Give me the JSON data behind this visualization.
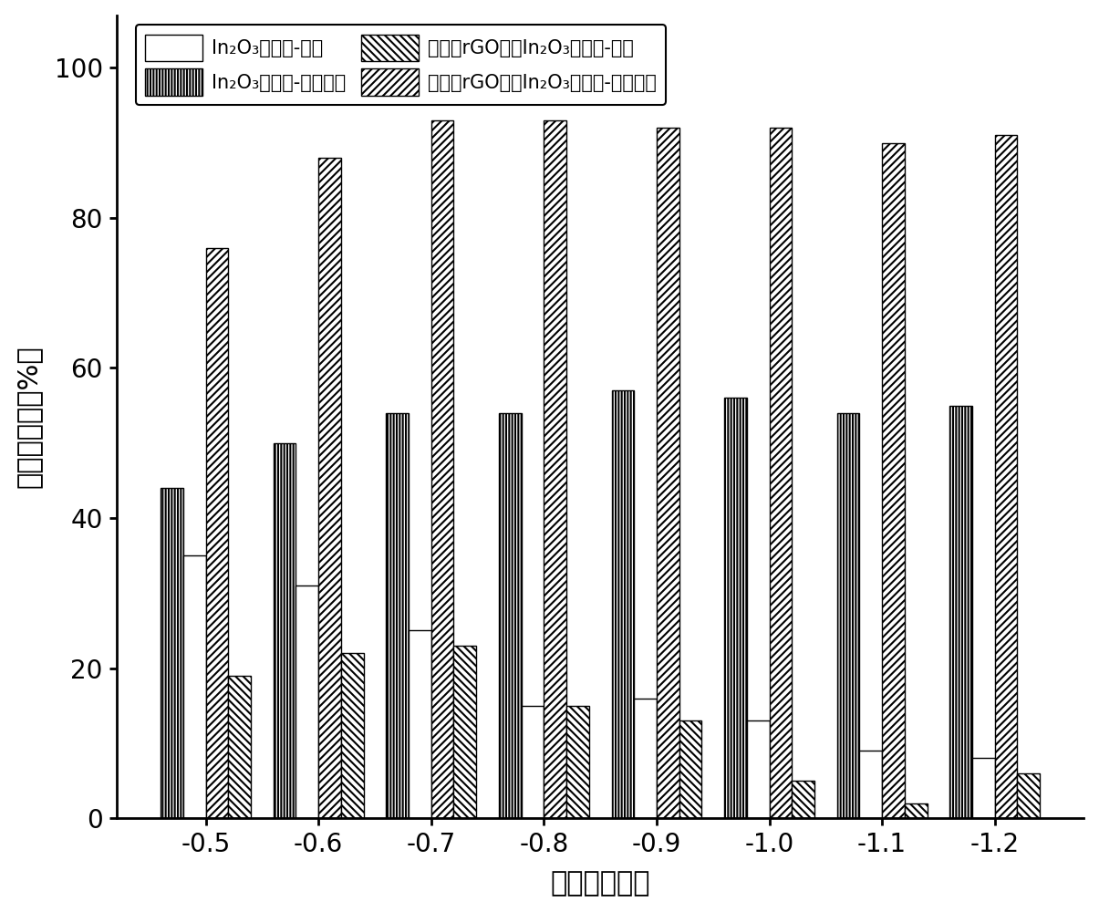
{
  "voltages": [
    "-0.5",
    "-0.6",
    "-0.7",
    "-0.8",
    "-0.9",
    "-1.0",
    "-1.1",
    "-1.2"
  ],
  "series": {
    "In2O3_formic": [
      35,
      31,
      25,
      15,
      16,
      13,
      9,
      8
    ],
    "In2O3_CO": [
      44,
      50,
      54,
      54,
      57,
      56,
      54,
      55
    ],
    "rGO_formic": [
      19,
      22,
      23,
      15,
      13,
      5,
      2,
      6
    ],
    "rGO_CO": [
      76,
      88,
      93,
      93,
      92,
      92,
      90,
      91
    ]
  },
  "labels": {
    "In2O3_formic": "In₂O₃纳米带-甲酸",
    "In2O3_CO": "In₂O₃纳米带-一氧化碳",
    "rGO_formic": "生长在rGO上的In₂O₃纳米带-甲酸",
    "rGO_CO": "生长在rGO上的In₂O₃纳米带-一氧化碳"
  },
  "xlabel": "电势（伏特）",
  "ylabel": "法拉第效率（%）",
  "ylim": [
    0,
    107
  ],
  "yticks": [
    0,
    20,
    40,
    60,
    80,
    100
  ],
  "bar_width": 0.2,
  "background_color": "#ffffff"
}
